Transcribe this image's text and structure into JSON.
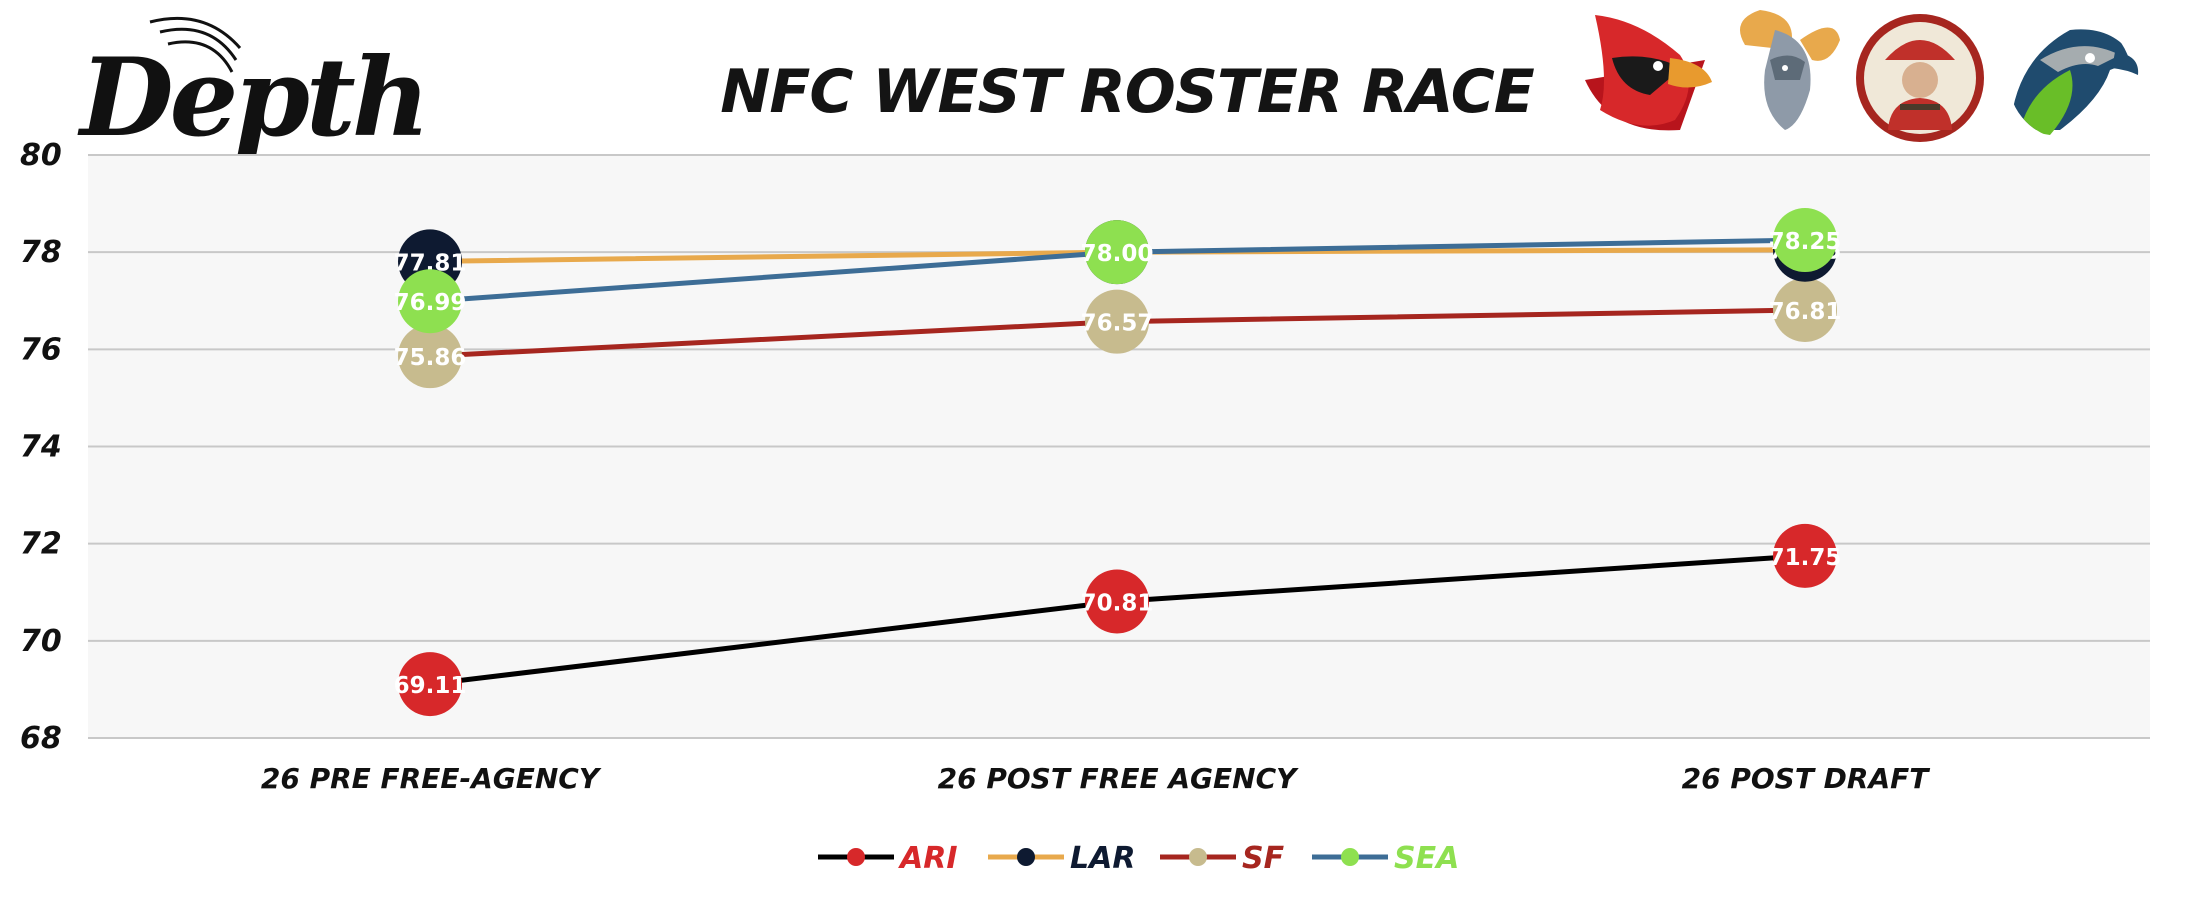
{
  "brand": {
    "logo_text": "Depth"
  },
  "team_logos": [
    {
      "team": "ARI",
      "icon": "cardinal-logo-icon"
    },
    {
      "team": "LAR",
      "icon": "ram-logo-icon"
    },
    {
      "team": "SF",
      "icon": "miner-logo-icon"
    },
    {
      "team": "SEA",
      "icon": "seahawk-logo-icon"
    }
  ],
  "chart_data": {
    "type": "line",
    "title": "NFC WEST ROSTER RACE",
    "categories": [
      "26 PRE FREE-AGENCY",
      "26 POST FREE AGENCY",
      "26 POST DRAFT"
    ],
    "ylim": [
      68,
      80
    ],
    "yticks": [
      68,
      70,
      72,
      74,
      76,
      78,
      80
    ],
    "grid": true,
    "legend_position": "bottom-center",
    "series": [
      {
        "name": "ARI",
        "values": [
          69.11,
          70.81,
          71.75
        ],
        "line_color": "#000000",
        "marker_color": "#d7282a",
        "label_color": "#d7282a"
      },
      {
        "name": "LAR",
        "values": [
          77.81,
          78.0,
          78.05
        ],
        "line_color": "#e8a94c",
        "marker_color": "#0e1a31",
        "label_color": "#0e1a31"
      },
      {
        "name": "SF",
        "values": [
          75.86,
          76.57,
          76.81
        ],
        "line_color": "#a6261f",
        "marker_color": "#c7bb8e",
        "label_color": "#a6261f"
      },
      {
        "name": "SEA",
        "values": [
          76.99,
          78.0,
          78.25
        ],
        "line_color": "#3d6d96",
        "marker_color": "#8ee050",
        "label_color": "#8ee050"
      }
    ]
  }
}
